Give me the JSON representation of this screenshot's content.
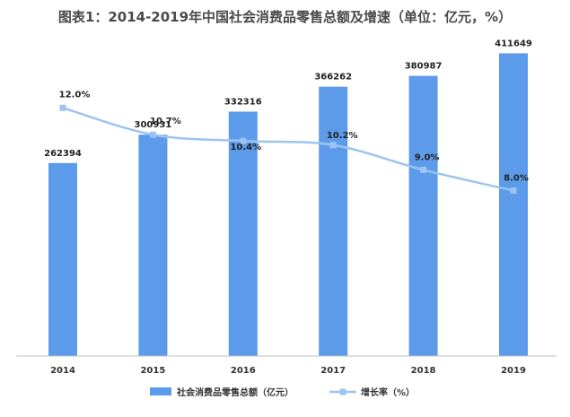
{
  "chart_data": {
    "type": "bar",
    "title": "图表1：2014-2019年中国社会消费品零售总额及增速（单位：亿元，%）",
    "categories": [
      "2014",
      "2015",
      "2016",
      "2017",
      "2018",
      "2019"
    ],
    "series": [
      {
        "name": "社会消费品零售总额（亿元）",
        "type": "bar",
        "axis": "left",
        "values": [
          262394,
          300931,
          332316,
          366262,
          380987,
          411649
        ],
        "labels": [
          "262394",
          "300931",
          "332316",
          "366262",
          "380987",
          "411649"
        ]
      },
      {
        "name": "增长率（%）",
        "type": "line",
        "axis": "right",
        "values": [
          12.0,
          10.7,
          10.4,
          10.2,
          9.0,
          8.0
        ],
        "labels": [
          "12.0%",
          "10.7%",
          "10.4%",
          "10.2%",
          "9.0%",
          "8.0%"
        ]
      }
    ],
    "ylim": [
      0,
      450000
    ],
    "y2lim": [
      0,
      16
    ],
    "grid": false,
    "legend_position": "bottom",
    "colors": {
      "bar": "#5b9bea",
      "line": "#9dc3f2"
    }
  }
}
